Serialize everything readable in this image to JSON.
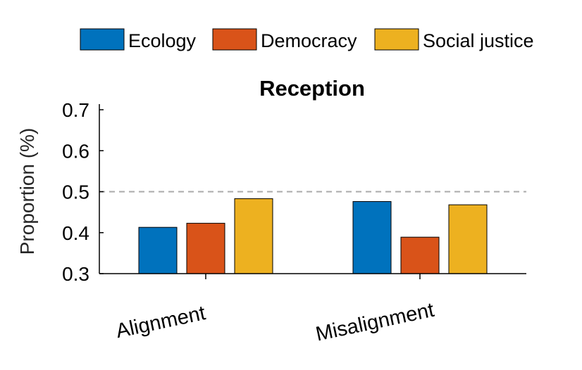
{
  "chart_data": {
    "type": "bar",
    "title": "Reception",
    "ylabel": "Proportion (%)",
    "xlabel": "",
    "categories": [
      "Alignment",
      "Misalignment"
    ],
    "series": [
      {
        "name": "Ecology",
        "color": "#0072BD",
        "values": [
          0.413,
          0.476
        ]
      },
      {
        "name": "Democracy",
        "color": "#D95319",
        "values": [
          0.423,
          0.389
        ]
      },
      {
        "name": "Social justice",
        "color": "#EDB120",
        "values": [
          0.483,
          0.468
        ]
      }
    ],
    "ylim": [
      0.3,
      0.7
    ],
    "yticks": [
      "0.3",
      "0.4",
      "0.5",
      "0.6",
      "0.7"
    ],
    "reference_line": {
      "y": 0.5,
      "style": "dashed",
      "color": "#AAAAAA"
    },
    "legend_position": "top",
    "grid": false
  }
}
